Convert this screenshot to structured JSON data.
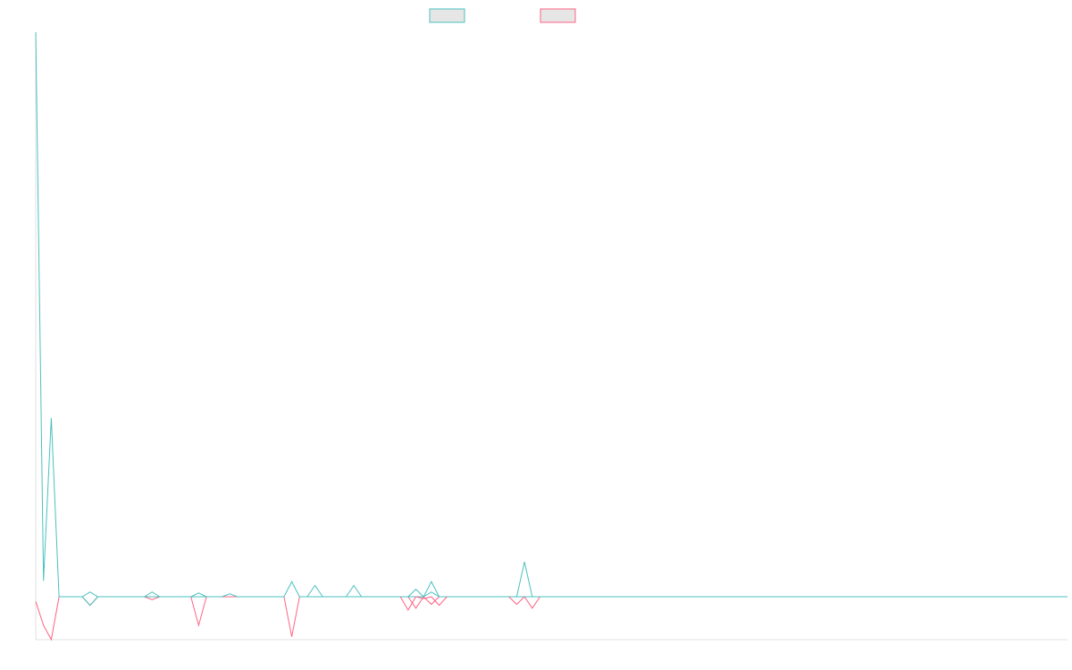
{
  "chart_data": {
    "type": "line",
    "x": [
      0,
      1,
      2,
      3,
      4,
      5,
      6,
      7,
      8,
      9,
      10,
      11,
      12,
      13,
      14,
      15,
      16,
      17,
      18,
      19,
      20,
      21,
      22,
      23,
      24,
      25,
      26,
      27,
      28,
      29,
      30,
      31,
      32,
      33,
      34,
      35,
      36,
      37,
      38,
      39,
      40,
      41,
      42,
      43,
      44,
      45,
      46,
      47,
      48,
      49,
      50,
      51,
      52,
      53,
      54,
      55,
      56,
      57,
      58,
      59,
      60,
      61,
      62,
      63,
      64,
      65,
      66,
      67,
      68,
      69,
      70,
      71,
      72,
      73,
      74,
      75,
      76,
      77,
      78,
      79,
      80,
      81,
      82,
      83,
      84,
      85,
      86,
      87,
      88,
      89,
      90,
      91,
      92,
      93,
      94,
      95,
      96,
      97,
      98,
      99,
      100,
      101,
      102,
      103,
      104,
      105,
      106,
      107,
      108,
      109,
      110,
      111,
      112,
      113,
      114,
      115,
      116,
      117,
      118,
      119,
      120,
      121,
      122,
      123,
      124,
      125,
      126,
      127,
      128,
      129,
      130,
      131,
      132,
      133
    ],
    "series": [
      {
        "color": "#4bc0c0",
        "values": [
          600,
          17,
          190,
          0,
          0,
          0,
          0,
          5,
          0,
          0,
          0,
          0,
          0,
          0,
          0,
          0,
          0,
          0,
          0,
          0,
          0,
          0,
          0,
          0,
          0,
          3,
          0,
          0,
          0,
          0,
          0,
          0,
          0,
          16,
          0,
          0,
          0,
          0,
          0,
          0,
          0,
          0,
          0,
          0,
          0,
          0,
          0,
          0,
          0,
          0,
          0,
          16,
          0,
          0,
          0,
          0,
          0,
          0,
          0,
          0,
          0,
          0,
          0,
          0,
          0,
          0,
          0,
          0,
          0,
          0,
          0,
          0,
          0,
          0,
          0,
          0,
          0,
          0,
          0,
          0,
          0,
          0,
          0,
          0,
          0,
          0,
          0,
          0,
          0,
          0,
          0,
          0,
          0,
          0,
          0,
          0,
          0,
          0,
          0,
          0,
          0,
          0,
          0,
          0,
          0,
          0,
          0,
          0,
          0,
          0,
          0,
          0,
          0,
          0,
          0,
          0,
          0,
          0,
          0,
          0,
          0,
          0,
          0,
          0,
          0,
          0,
          0,
          0,
          0,
          0,
          0,
          0,
          0,
          0
        ]
      },
      {
        "color": "#ff6384",
        "values": [
          -5,
          -30,
          -45,
          0,
          0,
          0,
          0,
          -9,
          0,
          0,
          0,
          0,
          0,
          0,
          0,
          -3,
          0,
          0,
          0,
          0,
          0,
          -30,
          0,
          0,
          0,
          0,
          0,
          0,
          0,
          0,
          0,
          0,
          0,
          -42,
          0,
          0,
          0,
          0,
          0,
          0,
          0,
          0,
          0,
          0,
          0,
          0,
          0,
          0,
          0,
          -12,
          0,
          -8,
          0,
          0,
          0,
          0,
          0,
          0,
          0,
          0,
          0,
          0,
          0,
          0,
          -12,
          0,
          0,
          0,
          0,
          0,
          0,
          0,
          0,
          0,
          0,
          0,
          0,
          0,
          0,
          0,
          0,
          0,
          0,
          0,
          0,
          0,
          0,
          0,
          0,
          0,
          0,
          0,
          0,
          0,
          0,
          0,
          0,
          0,
          0,
          0,
          0,
          0,
          0,
          0,
          0,
          0,
          0,
          0,
          0,
          0,
          0,
          0,
          0,
          0,
          0,
          0,
          0,
          0,
          0,
          0,
          0,
          0,
          0,
          0,
          0,
          0,
          0,
          0,
          0,
          0,
          0,
          0,
          0,
          0
        ]
      }
    ],
    "extra_points": {
      "teal": [
        [
          7,
          -9
        ],
        [
          15,
          5
        ],
        [
          21,
          4
        ],
        [
          36,
          12
        ],
        [
          41,
          12
        ],
        [
          49,
          8
        ],
        [
          51,
          5
        ],
        [
          63,
          37
        ]
      ],
      "pink": [
        [
          48,
          -14
        ],
        [
          50,
          -2
        ],
        [
          52,
          -9
        ],
        [
          62,
          -8
        ]
      ]
    },
    "ylim": [
      -45,
      600
    ],
    "xlim": [
      0,
      133
    ],
    "grid": false,
    "legend": "top-center"
  },
  "legend": {
    "items": [
      {
        "border_color": "#4bc0c0",
        "fill_color": "#e6e6e6"
      },
      {
        "border_color": "#ff6384",
        "fill_color": "#e6e6e6"
      }
    ]
  }
}
